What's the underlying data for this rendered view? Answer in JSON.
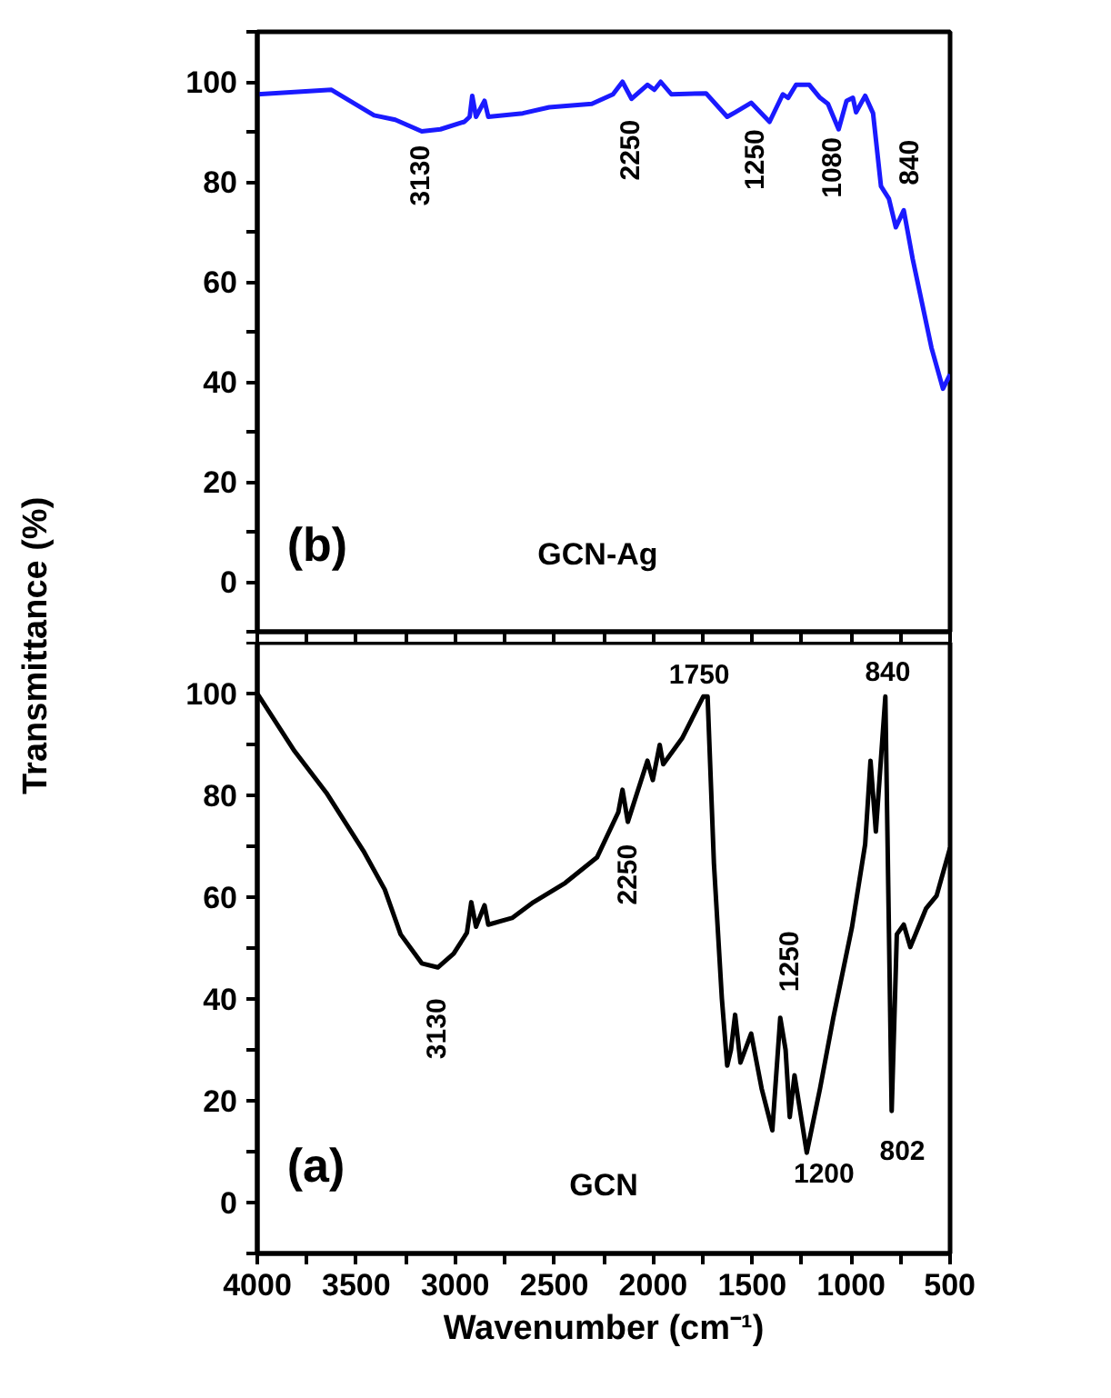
{
  "chart_data": [
    {
      "type": "line",
      "ylabel": "Transmittance (%)",
      "tick_labels": "y",
      "grid": false,
      "xlim": [
        4000,
        500
      ],
      "ylim": [
        -10,
        110
      ],
      "xticks": [
        {
          "value": 4000,
          "label": null
        },
        {
          "value": 3750,
          "label": null
        },
        {
          "value": 3500,
          "label": null
        },
        {
          "value": 3250,
          "label": null
        },
        {
          "value": 3000,
          "label": null
        },
        {
          "value": 2750,
          "label": null
        },
        {
          "value": 2500,
          "label": null
        },
        {
          "value": 2250,
          "label": null
        },
        {
          "value": 2000,
          "label": null
        },
        {
          "value": 1750,
          "label": null
        },
        {
          "value": 1500,
          "label": null
        },
        {
          "value": 1250,
          "label": null
        },
        {
          "value": 1000,
          "label": null
        },
        {
          "value": 750,
          "label": null
        },
        {
          "value": 500,
          "label": null
        }
      ],
      "yticks": [
        {
          "value": -10,
          "label": null
        },
        0,
        {
          "value": 10,
          "label": null
        },
        20,
        {
          "value": 30,
          "label": null
        },
        40,
        {
          "value": 50,
          "label": null
        },
        60,
        {
          "value": 70,
          "label": null
        },
        80,
        {
          "value": 90,
          "label": null
        },
        100,
        {
          "value": 110,
          "label": null
        }
      ],
      "series": [
        {
          "color": "#1a1aff",
          "x": [
            4000,
            3625,
            3410,
            3303,
            3169,
            3075,
            2954,
            2927,
            2914,
            2895,
            2852,
            2833,
            2659,
            2525,
            2310,
            2203,
            2155,
            2109,
            2029,
            1994,
            1962,
            1908,
            1733,
            1626,
            1586,
            1505,
            1412,
            1345,
            1318,
            1278,
            1211,
            1157,
            1117,
            1063,
            1023,
            991,
            975,
            929,
            889,
            849,
            809,
            774,
            734,
            689,
            594,
            536,
            500
          ],
          "values": [
            97.5,
            98.4,
            93.3,
            92.4,
            90.1,
            90.5,
            92,
            93,
            97.2,
            93,
            96.2,
            93,
            93.7,
            94.9,
            95.6,
            97.5,
            100,
            96.6,
            99.4,
            98.4,
            100,
            97.5,
            97.7,
            93,
            93.9,
            95.8,
            92,
            97.5,
            96.8,
            99.4,
            99.4,
            96.8,
            95.6,
            90.5,
            96.2,
            96.8,
            93.9,
            97.2,
            93.7,
            79.1,
            76.6,
            70.9,
            74.3,
            64.6,
            46.8,
            38.6,
            41.5
          ]
        }
      ],
      "annotations": [
        "(b)",
        "GCN-Ag",
        "3130",
        "2250",
        "1250",
        "1080",
        "840"
      ]
    },
    {
      "type": "line",
      "xlabel": "Wavenumber (cm⁻¹)",
      "grid": false,
      "xlim": [
        4000,
        500
      ],
      "ylim": [
        -10,
        110
      ],
      "xticks": [
        4000,
        {
          "value": 3750,
          "label": null
        },
        3500,
        {
          "value": 3250,
          "label": null
        },
        3000,
        {
          "value": 2750,
          "label": null
        },
        2500,
        {
          "value": 2250,
          "label": null
        },
        2000,
        {
          "value": 1750,
          "label": null
        },
        1500,
        {
          "value": 1250,
          "label": null
        },
        1000,
        {
          "value": 750,
          "label": null
        },
        500
      ],
      "yticks": [
        {
          "value": -10,
          "label": null
        },
        0,
        {
          "value": 10,
          "label": null
        },
        20,
        {
          "value": 30,
          "label": null
        },
        40,
        {
          "value": 50,
          "label": null
        },
        60,
        {
          "value": 70,
          "label": null
        },
        80,
        {
          "value": 90,
          "label": null
        },
        100,
        {
          "value": 110,
          "label": null
        }
      ],
      "series": [
        {
          "name": "GCN",
          "color": "#000000",
          "x": [
            4000,
            3812,
            3651,
            3464,
            3356,
            3276,
            3169,
            3088,
            3008,
            2941,
            2919,
            2895,
            2852,
            2833,
            2713,
            2605,
            2444,
            2284,
            2176,
            2155,
            2128,
            2029,
            2002,
            1967,
            1949,
            1854,
            1747,
            1725,
            1693,
            1653,
            1626,
            1607,
            1586,
            1559,
            1505,
            1452,
            1398,
            1358,
            1331,
            1310,
            1286,
            1224,
            1157,
            1090,
            996,
            929,
            902,
            875,
            827,
            795,
            769,
            734,
            701,
            621,
            568,
            500
          ],
          "values": [
            100,
            88.7,
            80.5,
            69.1,
            61.5,
            52.7,
            47,
            46.2,
            48.9,
            53,
            59,
            54.2,
            58.4,
            54.6,
            55.9,
            59,
            62.8,
            67.8,
            76.7,
            81.1,
            74.8,
            86.8,
            83,
            89.9,
            86.1,
            91.2,
            99.4,
            99.4,
            66.6,
            40.1,
            26.9,
            30,
            36.9,
            27.5,
            33.2,
            22.4,
            14.2,
            36.3,
            30,
            16.8,
            25,
            9.8,
            22.4,
            36.3,
            54,
            70.4,
            86.8,
            72.9,
            99.4,
            18,
            52.7,
            54.6,
            50.2,
            57.8,
            60.3,
            69.7
          ]
        }
      ],
      "annotations": [
        "(a)",
        "3130",
        "2250",
        "1750",
        "1250",
        "1200",
        "840",
        "802"
      ]
    }
  ]
}
